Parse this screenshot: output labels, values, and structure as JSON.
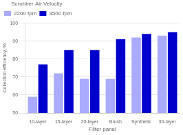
{
  "chart_data": {
    "type": "bar",
    "categories": [
      "10-layer",
      "15-layer",
      "20-layer",
      "Brush",
      "Synthetic",
      "30-layer"
    ],
    "series": [
      {
        "name": "2200 fpm",
        "color": "#aaaaff",
        "values": [
          59,
          72,
          69,
          69,
          92,
          93
        ]
      },
      {
        "name": "3500 fpm",
        "color": "#0000cc",
        "values": [
          77,
          85,
          85,
          91,
          94,
          95
        ]
      }
    ],
    "xlabel": "Filter panel",
    "ylabel": "Collection efficiency, %",
    "ylim": [
      50,
      100
    ],
    "yticks": [
      50,
      60,
      70,
      80,
      90,
      100
    ],
    "grid": true,
    "legend": "upper left",
    "legend_title": "Scrubber Air Velocity"
  }
}
